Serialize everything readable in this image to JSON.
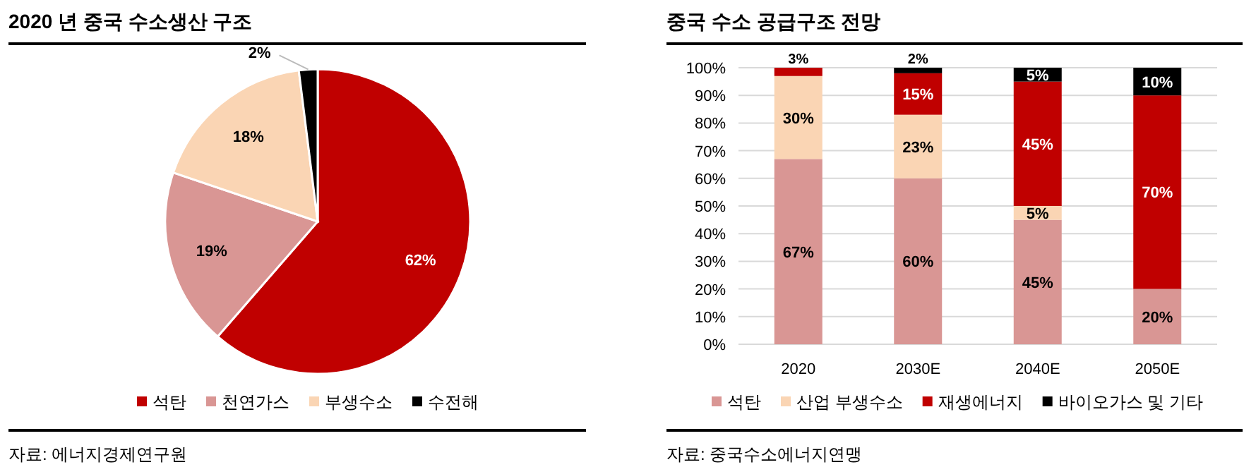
{
  "chart_data": [
    {
      "type": "pie",
      "title": "2020 년 중국 수소생산 구조",
      "categories": [
        "석탄",
        "천연가스",
        "부생수소",
        "수전해"
      ],
      "values": [
        62,
        19,
        18,
        2
      ],
      "colors": [
        "#c00000",
        "#d99694",
        "#fad5b4",
        "#000000"
      ],
      "value_labels": [
        "62%",
        "19%",
        "18%",
        "2%"
      ],
      "legend": "bottom",
      "annotations": [
        "자료: 에너지경제연구원"
      ]
    },
    {
      "type": "bar",
      "stacked": true,
      "title": "중국 수소 공급구조 전망",
      "categories": [
        "2020",
        "2030E",
        "2040E",
        "2050E"
      ],
      "series": [
        {
          "name": "석탄",
          "color": "#d99694",
          "values": [
            67,
            60,
            45,
            20
          ],
          "value_labels": [
            "67%",
            "60%",
            "45%",
            "20%"
          ]
        },
        {
          "name": "산업 부생수소",
          "color": "#fad5b4",
          "values": [
            30,
            23,
            5,
            null
          ],
          "value_labels": [
            "30%",
            "23%",
            "5%",
            null
          ]
        },
        {
          "name": "재생에너지",
          "color": "#c00000",
          "values": [
            3,
            15,
            45,
            70
          ],
          "value_labels": [
            "3%",
            "15%",
            "45%",
            "70%"
          ]
        },
        {
          "name": "바이오가스 및 기타",
          "color": "#000000",
          "values": [
            null,
            2,
            5,
            10
          ],
          "value_labels": [
            null,
            "2%",
            "5%",
            "10%"
          ]
        }
      ],
      "ylim": [
        0,
        100
      ],
      "yticks": [
        {
          "value": 0,
          "label": "0%"
        },
        {
          "value": 10,
          "label": "10%"
        },
        {
          "value": 20,
          "label": "20%"
        },
        {
          "value": 30,
          "label": "30%"
        },
        {
          "value": 40,
          "label": "40%"
        },
        {
          "value": 50,
          "label": "50%"
        },
        {
          "value": 60,
          "label": "60%"
        },
        {
          "value": 70,
          "label": "70%"
        },
        {
          "value": 80,
          "label": "80%"
        },
        {
          "value": 90,
          "label": "90%"
        },
        {
          "value": 100,
          "label": "100%"
        }
      ],
      "grid": "y",
      "legend": "bottom",
      "annotations": [
        "자료: 중국수소에너지연맹"
      ]
    }
  ]
}
